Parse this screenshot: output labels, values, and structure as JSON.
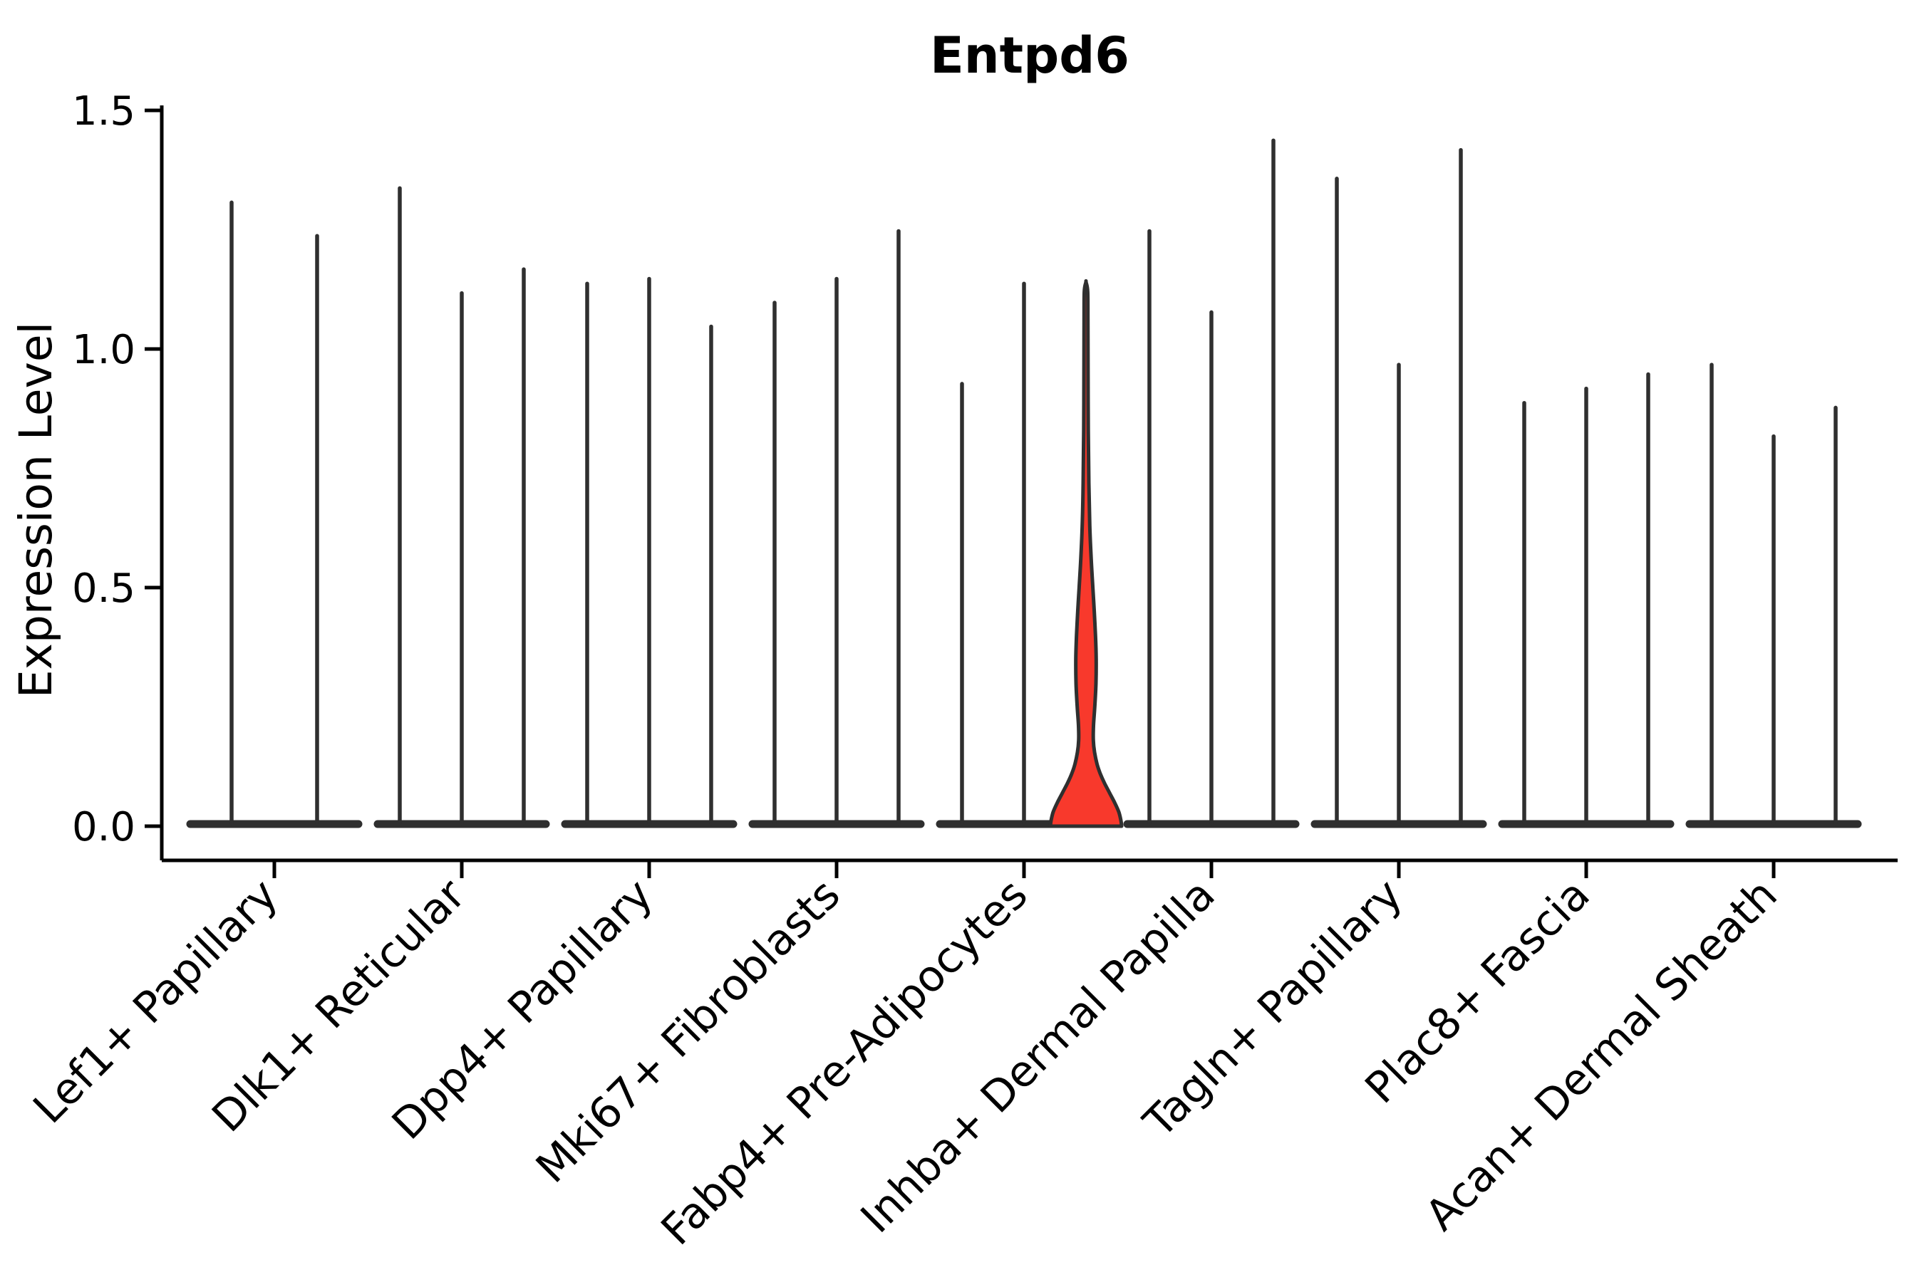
{
  "title": "Entpd6",
  "y_axis": {
    "label": "Expression Level",
    "ticks": [
      "0.0",
      "0.5",
      "1.0",
      "1.5"
    ]
  },
  "chart_data": {
    "type": "violin",
    "title": "Entpd6",
    "xlabel": "",
    "ylabel": "Expression Level",
    "ylim": [
      0,
      1.5
    ],
    "ytick_values": [
      0.0,
      0.5,
      1.0,
      1.5
    ],
    "grid": false,
    "legend": "none",
    "categories": [
      "Lef1+ Papillary",
      "Dlk1+ Reticular",
      "Dpp4+ Papillary",
      "Mki67+ Fibroblasts",
      "Fabp4+ Pre-Adipocytes",
      "Inhba+ Dermal Papilla",
      "Tagln+ Papillary",
      "Plac8+ Fascia",
      "Acan+ Dermal Sheath"
    ],
    "groups": [
      {
        "category": "Lef1+ Papillary",
        "violin_peaks": [
          1.31,
          1.24
        ],
        "highlight_index": -1
      },
      {
        "category": "Dlk1+ Reticular",
        "violin_peaks": [
          1.34,
          1.12,
          1.17
        ],
        "highlight_index": -1
      },
      {
        "category": "Dpp4+ Papillary",
        "violin_peaks": [
          1.14,
          1.15,
          1.05
        ],
        "highlight_index": -1
      },
      {
        "category": "Mki67+ Fibroblasts",
        "violin_peaks": [
          1.1,
          1.15,
          1.25
        ],
        "highlight_index": -1
      },
      {
        "category": "Fabp4+ Pre-Adipocytes",
        "violin_peaks": [
          0.93,
          1.14,
          1.14
        ],
        "highlight_index": 2
      },
      {
        "category": "Inhba+ Dermal Papilla",
        "violin_peaks": [
          1.25,
          1.08,
          1.44
        ],
        "highlight_index": -1
      },
      {
        "category": "Tagln+ Papillary",
        "violin_peaks": [
          1.36,
          0.97,
          1.42
        ],
        "highlight_index": -1
      },
      {
        "category": "Plac8+ Fascia",
        "violin_peaks": [
          0.89,
          0.92,
          0.95
        ],
        "highlight_index": -1
      },
      {
        "category": "Acan+ Dermal Sheath",
        "violin_peaks": [
          0.97,
          0.82,
          0.88
        ],
        "highlight_index": -1
      }
    ],
    "highlight_violin": {
      "category": "Fabp4+ Pre-Adipocytes",
      "position_in_group": 3,
      "peak": 1.14,
      "profile_value_halfwidth": [
        [
          0.0,
          50
        ],
        [
          0.012,
          49
        ],
        [
          0.03,
          46
        ],
        [
          0.05,
          40
        ],
        [
          0.07,
          33
        ],
        [
          0.09,
          26
        ],
        [
          0.11,
          20
        ],
        [
          0.13,
          15.5
        ],
        [
          0.155,
          12.0
        ],
        [
          0.18,
          10.3
        ],
        [
          0.21,
          10.5
        ],
        [
          0.25,
          12.3
        ],
        [
          0.3,
          14.0
        ],
        [
          0.35,
          14.3
        ],
        [
          0.4,
          13.3
        ],
        [
          0.45,
          11.6
        ],
        [
          0.5,
          9.6
        ],
        [
          0.56,
          7.3
        ],
        [
          0.63,
          5.3
        ],
        [
          0.72,
          4.0
        ],
        [
          0.83,
          3.2
        ],
        [
          0.95,
          2.9
        ],
        [
          1.06,
          2.7
        ],
        [
          1.12,
          2.4
        ],
        [
          1.14,
          0.1
        ]
      ]
    },
    "colors": {
      "violin_stroke": "#2f2f2f",
      "highlight_fill": "#f8392c",
      "axis": "#000000",
      "text": "#000000"
    }
  }
}
